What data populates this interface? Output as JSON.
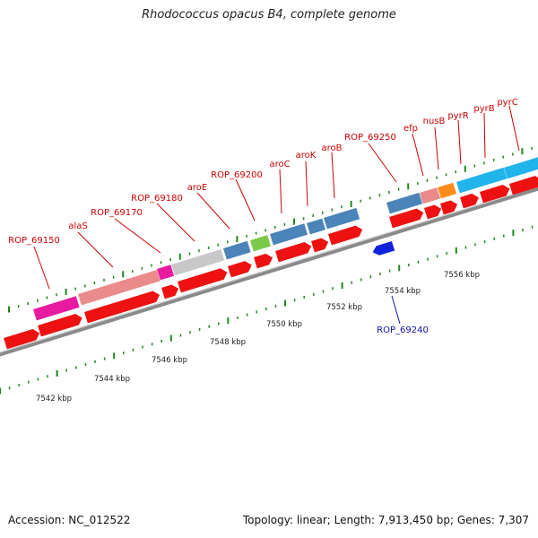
{
  "header": {
    "title": "Rhodococcus opacus B4, complete genome"
  },
  "footer": {
    "accession": "Accession: NC_012522",
    "summary": "Topology: linear; Length: 7,913,450 bp; Genes: 7,307"
  },
  "colors": {
    "cds": "#ee1111",
    "cds_reverse": "#1122dd",
    "gene_label": "#cc0000",
    "gene_label_reverse": "#1111aa",
    "tick": "#1a8a1a",
    "backbone": "#7a7a7a"
  },
  "scale_labels": [
    "7542 kbp",
    "7544 kbp",
    "7546 kbp",
    "7548 kbp",
    "7550 kbp",
    "7552 kbp",
    "7554 kbp",
    "7556 kbp"
  ],
  "gene_labels": [
    {
      "text": "ROP_69150",
      "strand": "forward"
    },
    {
      "text": "alaS",
      "strand": "forward"
    },
    {
      "text": "ROP_69170",
      "strand": "forward"
    },
    {
      "text": "ROP_69180",
      "strand": "forward"
    },
    {
      "text": "aroE",
      "strand": "forward"
    },
    {
      "text": "ROP_69200",
      "strand": "forward"
    },
    {
      "text": "aroC",
      "strand": "forward"
    },
    {
      "text": "aroK",
      "strand": "forward"
    },
    {
      "text": "aroB",
      "strand": "forward"
    },
    {
      "text": "ROP_69250",
      "strand": "forward"
    },
    {
      "text": "efp",
      "strand": "forward"
    },
    {
      "text": "nusB",
      "strand": "forward"
    },
    {
      "text": "pyrR",
      "strand": "forward"
    },
    {
      "text": "pyrB",
      "strand": "forward"
    },
    {
      "text": "pyrC",
      "strand": "forward"
    },
    {
      "text": "ROP_69240",
      "strand": "reverse"
    }
  ]
}
